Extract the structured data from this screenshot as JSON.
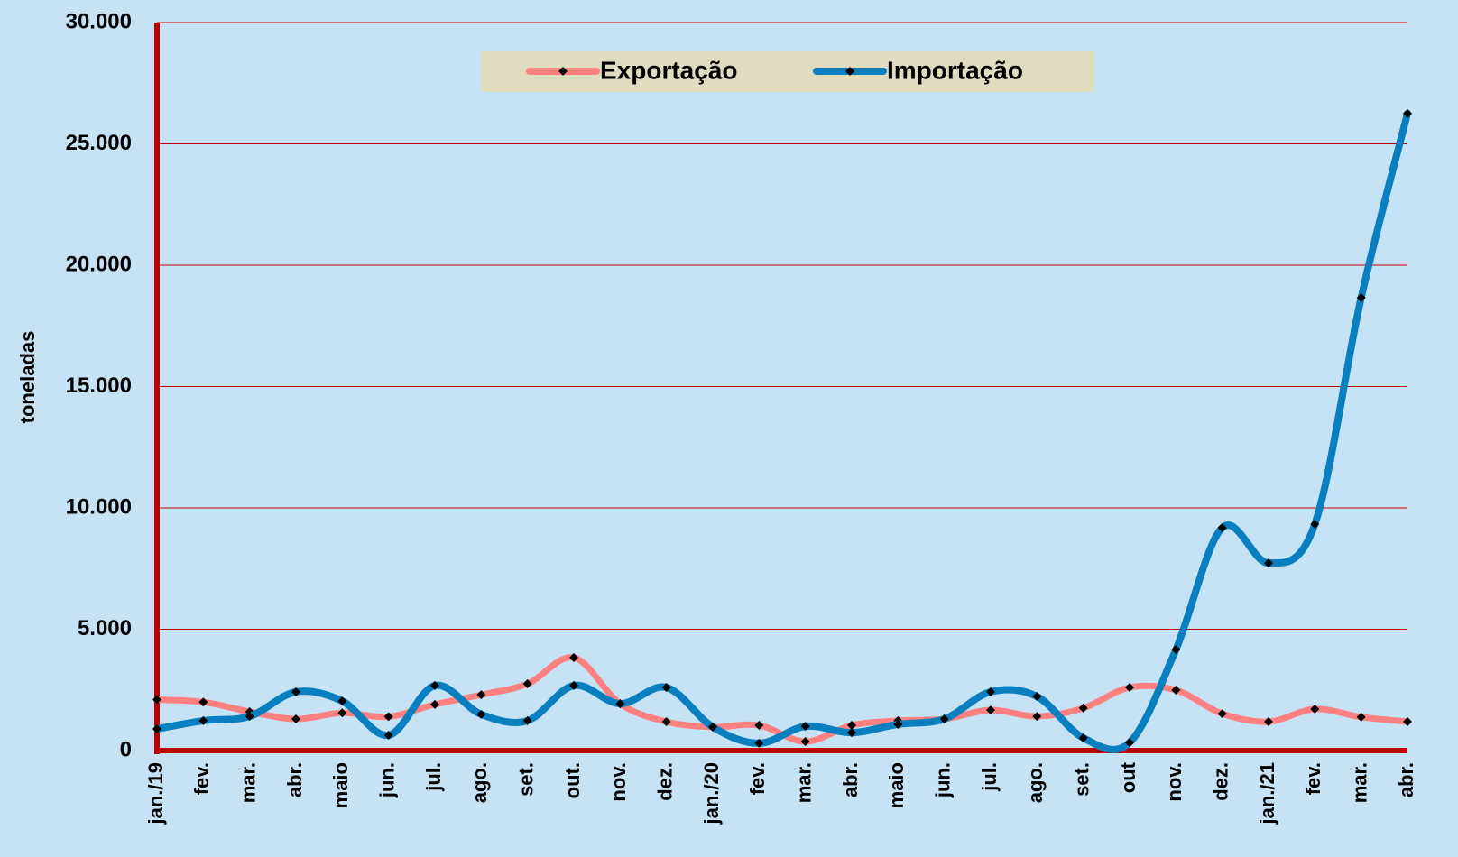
{
  "chart_data": {
    "type": "line",
    "y_label": "toneladas",
    "categories": [
      "jan./19",
      "fev.",
      "mar.",
      "abr.",
      "maio",
      "jun.",
      "jul.",
      "ago.",
      "set.",
      "out.",
      "nov.",
      "dez.",
      "jan./20",
      "fev.",
      "mar.",
      "abr.",
      "maio",
      "jun.",
      "jul.",
      "ago.",
      "set.",
      "out",
      "nov.",
      "dez.",
      "jan./21",
      "fev.",
      "mar.",
      "abr."
    ],
    "series": [
      {
        "name": "Exportação",
        "color": "#ff8080",
        "values": [
          2100,
          2000,
          1600,
          1300,
          1550,
          1400,
          1900,
          2300,
          2750,
          3830,
          1930,
          1190,
          970,
          1040,
          370,
          1040,
          1230,
          1300,
          1670,
          1410,
          1750,
          2600,
          2490,
          1520,
          1190,
          1710,
          1380,
          1190
        ]
      },
      {
        "name": "Importação",
        "color": "#0a7fc0",
        "values": [
          890,
          1230,
          1410,
          2420,
          2040,
          630,
          2680,
          1490,
          1230,
          2680,
          1930,
          2600,
          970,
          300,
          1000,
          740,
          1080,
          1300,
          2420,
          2230,
          520,
          330,
          4160,
          9180,
          7730,
          9330,
          18660,
          26250
        ]
      }
    ],
    "ylim": [
      0,
      30000
    ],
    "yticks": [
      0,
      {
        "value": 5000,
        "label": "5.000"
      },
      {
        "value": 10000,
        "label": "10.000"
      },
      {
        "value": 15000,
        "label": "15.000"
      },
      {
        "value": 20000,
        "label": "20.000"
      },
      {
        "value": 25000,
        "label": "25.000"
      },
      {
        "value": 30000,
        "label": "30.000"
      }
    ],
    "grid": true,
    "legend": "top"
  }
}
